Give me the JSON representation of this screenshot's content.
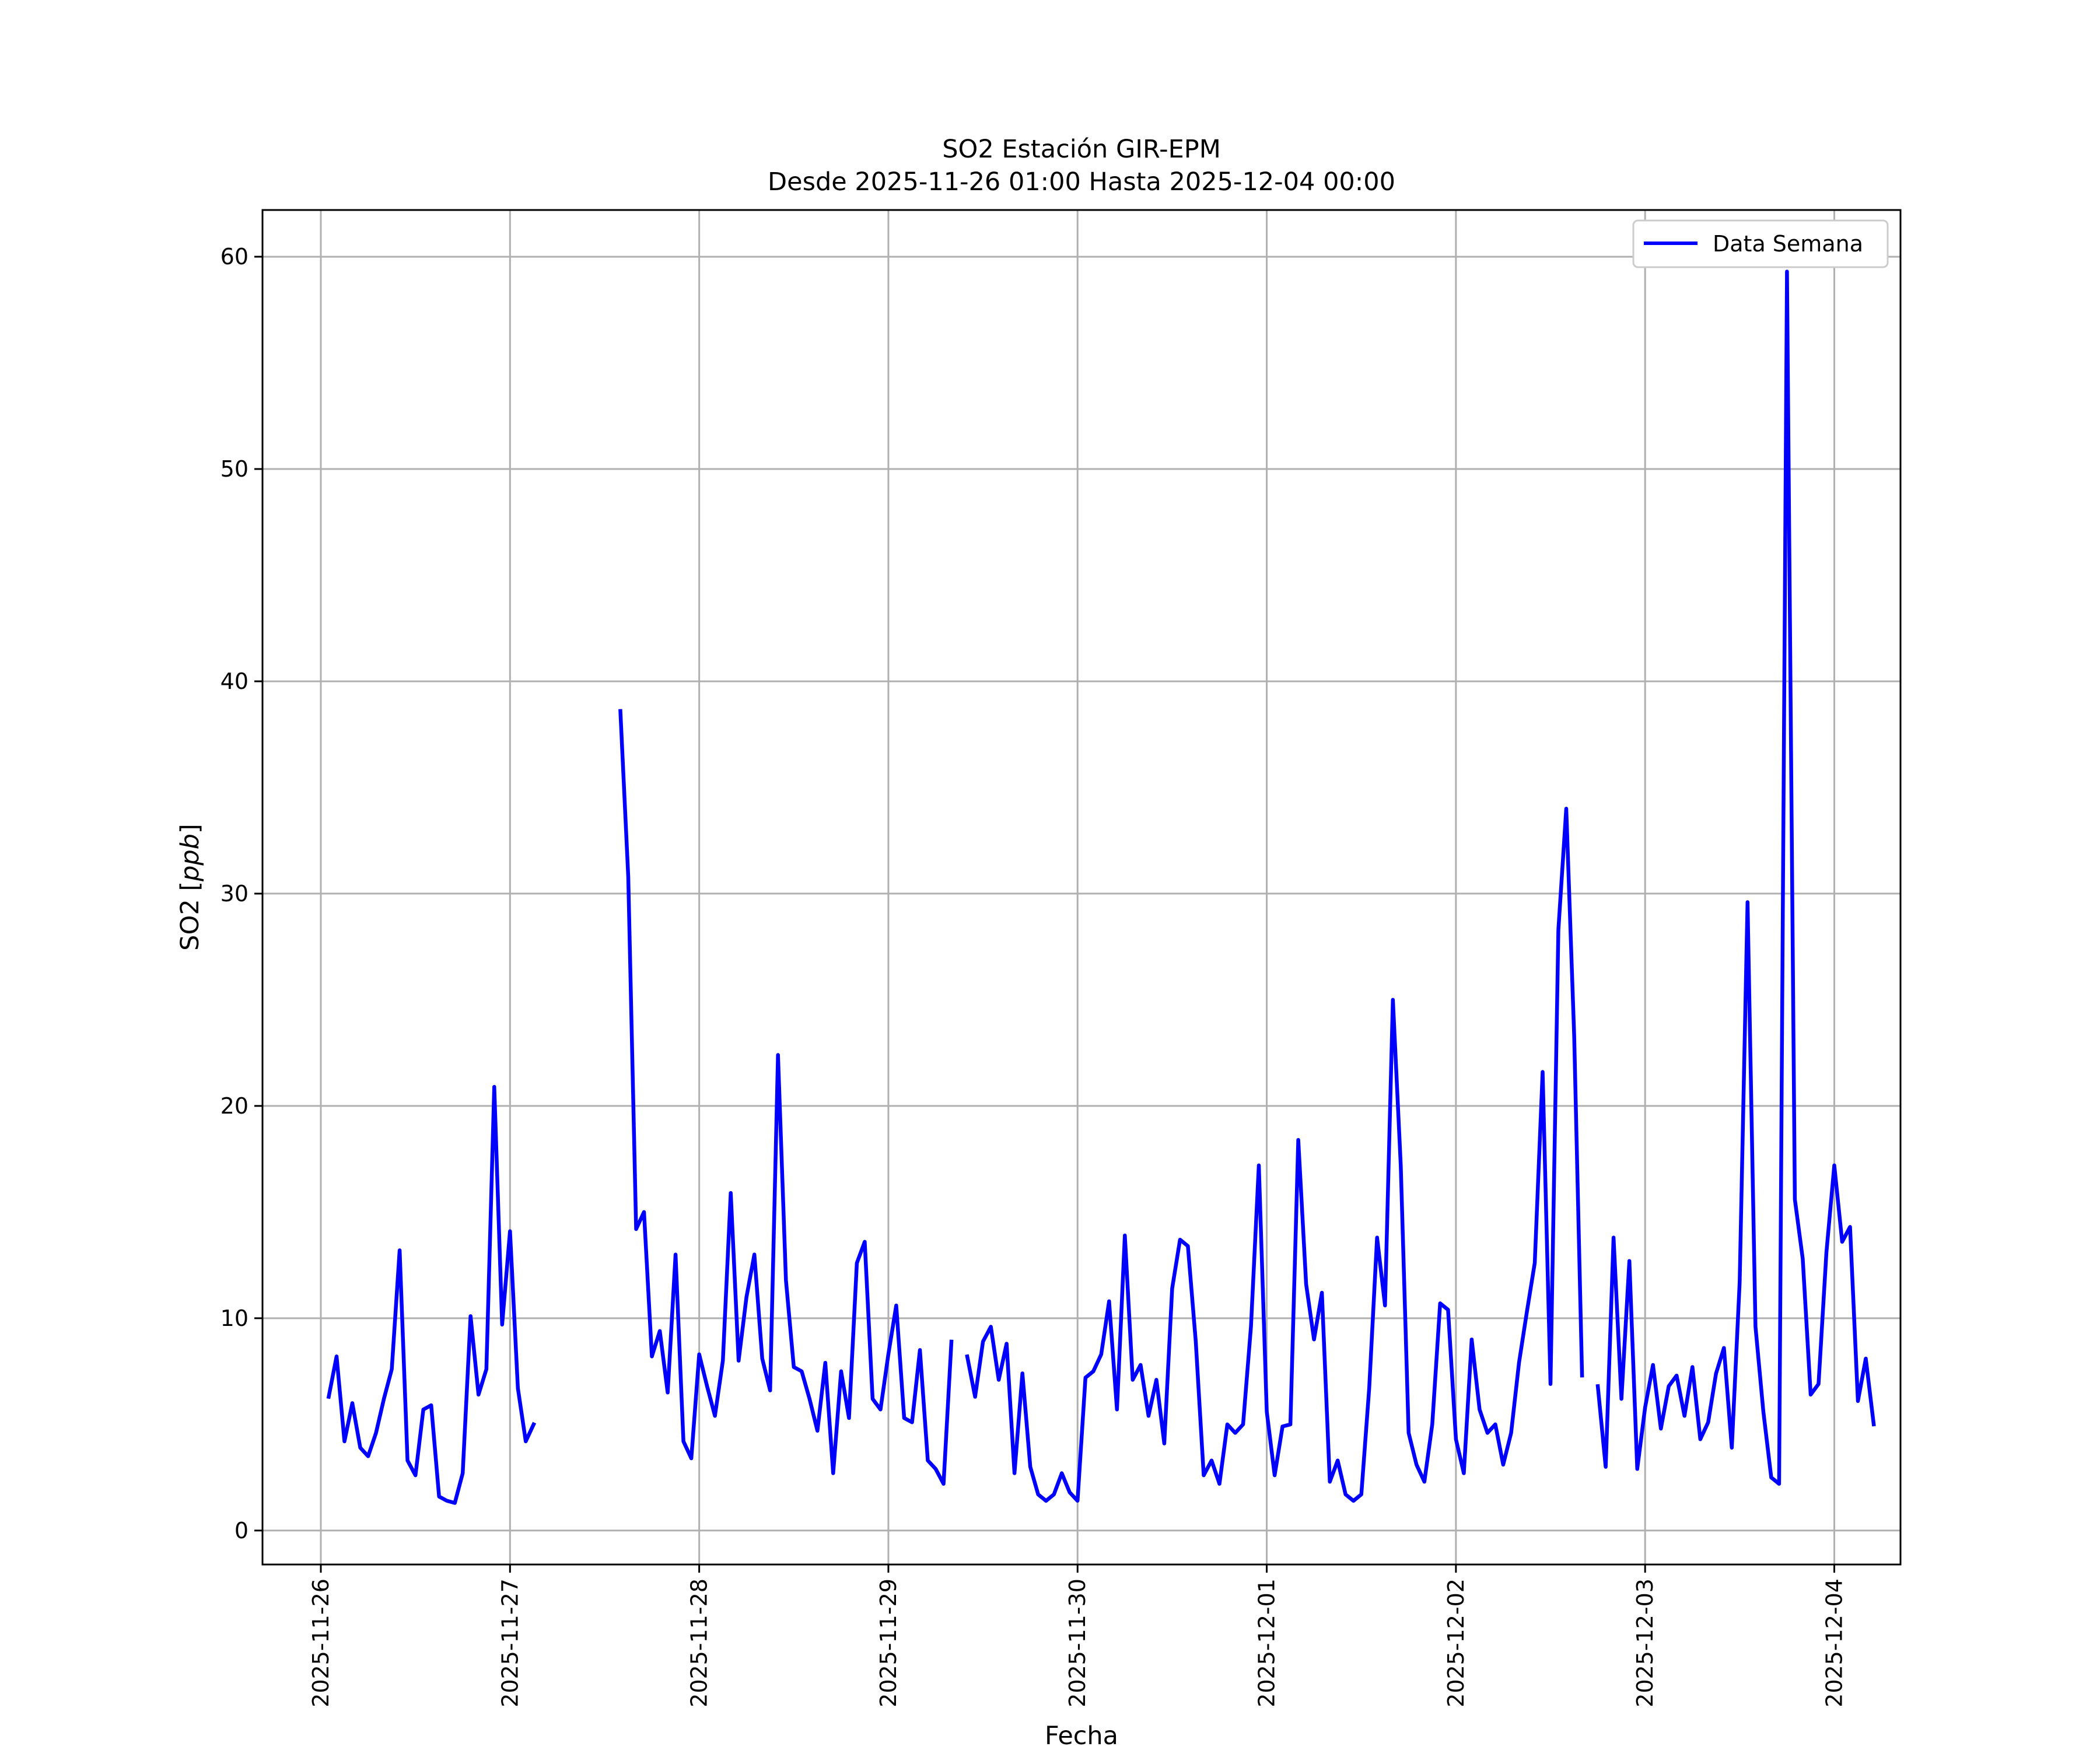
{
  "chart_data": {
    "type": "line",
    "title": "SO2 Estación GIR-EPM",
    "subtitle": "Desde 2025-11-26 01:00 Hasta 2025-12-04 00:00",
    "xlabel": "Fecha",
    "ylabel": "SO2 [ppb]",
    "ylabel_parts": {
      "text": "SO2 [",
      "unit": "ppb",
      "close": "]"
    },
    "x_axis_type": "datetime",
    "xlim": [
      "2025-11-25T16:36",
      "2025-12-04T08:24"
    ],
    "ylim": [
      -1.6,
      62.2
    ],
    "x_ticks": [
      "2025-11-26",
      "2025-11-27",
      "2025-11-28",
      "2025-11-29",
      "2025-11-30",
      "2025-12-01",
      "2025-12-02",
      "2025-12-03",
      "2025-12-04"
    ],
    "y_ticks": [
      0,
      10,
      20,
      30,
      40,
      50,
      60
    ],
    "grid": true,
    "legend": {
      "position": "upper right"
    },
    "series": [
      {
        "name": "Data Semana",
        "color": "#0000ff",
        "sampling": "hourly",
        "start": "2025-11-26T01:00",
        "end": "2025-12-04T00:00",
        "values": [
          6.3,
          8.2,
          4.2,
          6.0,
          3.9,
          3.5,
          4.6,
          6.2,
          7.6,
          13.2,
          3.3,
          2.6,
          5.7,
          5.9,
          1.6,
          1.4,
          1.3,
          2.7,
          10.1,
          6.4,
          7.6,
          20.9,
          9.7,
          14.1,
          6.7,
          4.2,
          5.0,
          null,
          null,
          null,
          null,
          null,
          null,
          null,
          null,
          null,
          null,
          38.6,
          30.8,
          14.2,
          15.0,
          8.2,
          9.4,
          6.5,
          13.0,
          4.2,
          3.4,
          8.3,
          6.8,
          5.4,
          8.0,
          15.9,
          8.0,
          11.0,
          13.0,
          8.1,
          6.6,
          22.4,
          11.8,
          7.7,
          7.5,
          6.2,
          4.7,
          7.9,
          2.7,
          7.5,
          5.3,
          12.6,
          13.6,
          6.2,
          5.7,
          8.3,
          10.6,
          5.3,
          5.1,
          8.5,
          3.3,
          2.9,
          2.2,
          8.9,
          null,
          8.2,
          6.3,
          8.9,
          9.6,
          7.1,
          8.8,
          2.7,
          7.4,
          3.0,
          1.7,
          1.4,
          1.7,
          2.7,
          1.8,
          1.4,
          7.2,
          7.5,
          8.3,
          10.8,
          5.7,
          13.9,
          7.1,
          7.8,
          5.4,
          7.1,
          4.1,
          11.4,
          13.7,
          13.4,
          8.9,
          2.6,
          3.3,
          2.2,
          5.0,
          4.6,
          5.0,
          9.6,
          17.2,
          5.6,
          2.6,
          4.9,
          5.0,
          18.4,
          11.6,
          9.0,
          11.2,
          2.3,
          3.3,
          1.7,
          1.4,
          1.7,
          6.7,
          13.8,
          10.6,
          25.0,
          17.2,
          4.6,
          3.1,
          2.3,
          5.0,
          10.7,
          10.4,
          4.3,
          2.7,
          9.0,
          5.7,
          4.6,
          5.0,
          3.1,
          4.6,
          7.9,
          10.3,
          12.6,
          21.6,
          6.9,
          28.3,
          34.0,
          23.3,
          7.3,
          null,
          6.8,
          3.0,
          13.8,
          6.2,
          12.7,
          2.9,
          5.8,
          7.8,
          4.8,
          6.8,
          7.3,
          5.4,
          7.7,
          4.3,
          5.1,
          7.4,
          8.6,
          3.9,
          11.7,
          29.6,
          9.6,
          5.6,
          2.5,
          2.2,
          59.3,
          15.6,
          12.8,
          6.4,
          6.9,
          13.1,
          17.2,
          13.6,
          14.3,
          6.1,
          8.1,
          5.0
        ]
      }
    ]
  }
}
